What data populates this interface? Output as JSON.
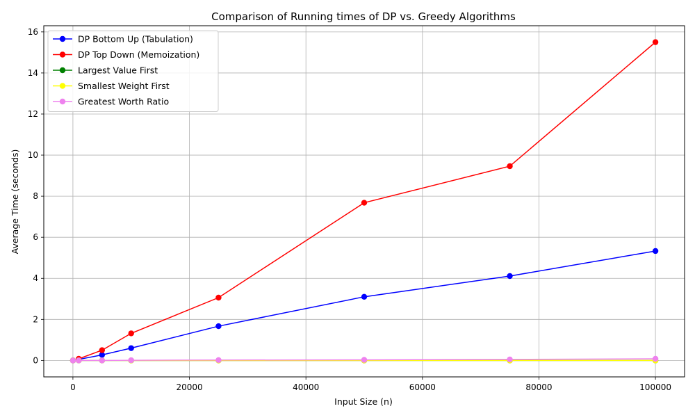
{
  "chart_data": {
    "type": "line",
    "title": "Comparison of Running times of DP vs. Greedy Algorithms",
    "xlabel": "Input Size (n)",
    "ylabel": "Average Time (seconds)",
    "xlim": [
      -5000,
      105000
    ],
    "ylim": [
      -0.8,
      16.3
    ],
    "xticks": [
      0,
      20000,
      40000,
      60000,
      80000,
      100000
    ],
    "xtick_labels": [
      "0",
      "20000",
      "40000",
      "60000",
      "80000",
      "100000"
    ],
    "yticks": [
      0,
      2,
      4,
      6,
      8,
      10,
      12,
      14,
      16
    ],
    "ytick_labels": [
      "0",
      "2",
      "4",
      "6",
      "8",
      "10",
      "12",
      "14",
      "16"
    ],
    "grid": true,
    "legend_position": "top-left",
    "x": [
      10,
      1000,
      5000,
      10000,
      25000,
      50000,
      75000,
      100000
    ],
    "series": [
      {
        "name": "DP Bottom Up (Tabulation)",
        "color": "#0000ff",
        "values": [
          0.0,
          0.05,
          0.27,
          0.6,
          1.67,
          3.1,
          4.11,
          5.33
        ]
      },
      {
        "name": "DP Top Down (Memoization)",
        "color": "#ff0000",
        "values": [
          0.0,
          0.08,
          0.5,
          1.32,
          3.06,
          7.68,
          9.46,
          15.5
        ]
      },
      {
        "name": "Largest Value First",
        "color": "#008000",
        "values": [
          0.0,
          0.0,
          0.0,
          0.0,
          0.0,
          0.0,
          0.0,
          0.0
        ]
      },
      {
        "name": "Smallest Weight First",
        "color": "#ffff00",
        "values": [
          0.0,
          0.0,
          0.0,
          0.0,
          0.0,
          0.0,
          0.0,
          0.0
        ]
      },
      {
        "name": "Greatest Worth Ratio",
        "color": "#ee82ee",
        "values": [
          0.0,
          0.0,
          0.0,
          0.01,
          0.02,
          0.03,
          0.05,
          0.08
        ]
      }
    ]
  }
}
